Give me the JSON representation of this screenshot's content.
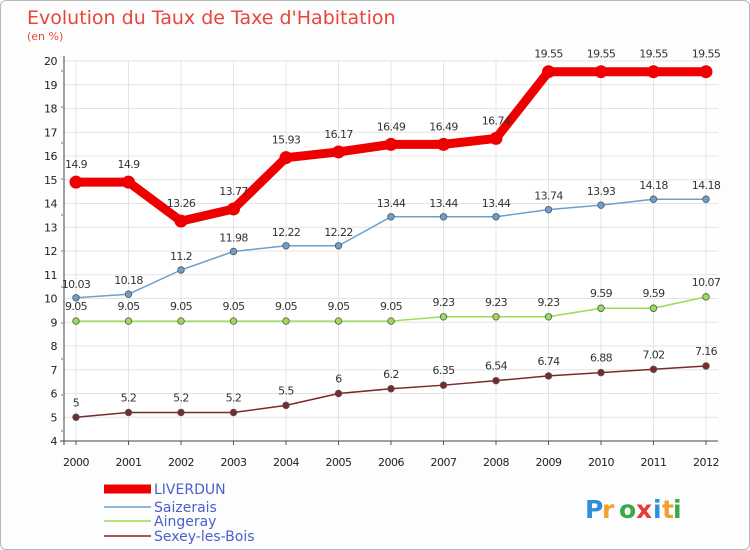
{
  "chart_data": {
    "type": "line",
    "title": "Evolution du Taux de Taxe d'Habitation",
    "subtitle": "(en %)",
    "categories": [
      "2000",
      "2001",
      "2002",
      "2003",
      "2004",
      "2005",
      "2006",
      "2007",
      "2008",
      "2009",
      "2010",
      "2011",
      "2012"
    ],
    "ylim": [
      4,
      20
    ],
    "yticks": [
      "4",
      "5",
      "6",
      "7",
      "8",
      "9",
      "10",
      "11",
      "12",
      "13",
      "14",
      "15",
      "16",
      "17",
      "18",
      "19",
      "20"
    ],
    "grid": true,
    "legend_position": "bottom-left",
    "series": [
      {
        "name": "LIVERDUN",
        "color": "#ee0000",
        "values": [
          14.9,
          14.9,
          13.26,
          13.77,
          15.93,
          16.17,
          16.49,
          16.49,
          16.74,
          19.55,
          19.55,
          19.55,
          19.55
        ],
        "labels": [
          "14.9",
          "14.9",
          "13.26",
          "13.77",
          "15.93",
          "16.17",
          "16.49",
          "16.49",
          "16.74",
          "19.55",
          "19.55",
          "19.55",
          "19.55"
        ]
      },
      {
        "name": "Saizerais",
        "color": "#6aa0cf",
        "values": [
          10.03,
          10.18,
          11.2,
          11.98,
          12.22,
          12.22,
          13.44,
          13.44,
          13.44,
          13.74,
          13.93,
          14.18,
          14.18
        ],
        "labels": [
          "10.03",
          "10.18",
          "11.2",
          "11.98",
          "12.22",
          "12.22",
          "13.44",
          "13.44",
          "13.44",
          "13.74",
          "13.93",
          "14.18",
          "14.18"
        ]
      },
      {
        "name": "Aingeray",
        "color": "#99dd55",
        "values": [
          9.05,
          9.05,
          9.05,
          9.05,
          9.05,
          9.05,
          9.05,
          9.23,
          9.23,
          9.23,
          9.59,
          9.59,
          10.07
        ],
        "labels": [
          "9.05",
          "9.05",
          "9.05",
          "9.05",
          "9.05",
          "9.05",
          "9.05",
          "9.23",
          "9.23",
          "9.23",
          "9.59",
          "9.59",
          "10.07"
        ]
      },
      {
        "name": "Sexey-les-Bois",
        "color": "#7a2a2a",
        "values": [
          5,
          5.2,
          5.2,
          5.2,
          5.5,
          6,
          6.2,
          6.35,
          6.54,
          6.74,
          6.88,
          7.02,
          7.16
        ],
        "labels": [
          "5",
          "5.2",
          "5.2",
          "5.2",
          "5.5",
          "6",
          "6.2",
          "6.35",
          "6.54",
          "6.74",
          "6.88",
          "7.02",
          "7.16"
        ]
      }
    ]
  },
  "logo": {
    "letters": [
      "P",
      "r",
      "o",
      "x",
      "i",
      "t",
      "i"
    ],
    "colors": [
      "#2f8fd8",
      "#f2a030",
      "#3aaa45",
      "#e23c3c",
      "#2f8fd8",
      "#f2a030",
      "#3aaa45"
    ]
  }
}
